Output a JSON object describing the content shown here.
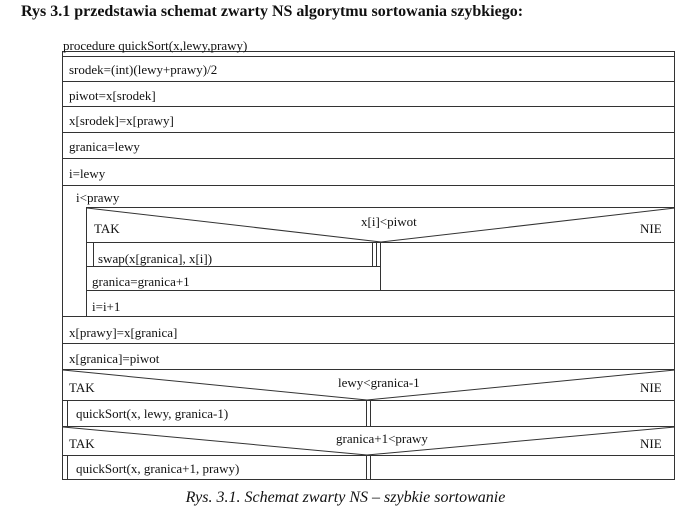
{
  "heading": "Rys 3.1 przedstawia schemat zwarty NS algorytmu sortowania szybkiego:",
  "caption": "Rys. 3.1. Schemat zwarty NS – szybkie sortowanie",
  "diagram": {
    "procedure": "procedure quickSort(x,lewy,prawy)",
    "srodek": "srodek=(int)(lewy+prawy)/2",
    "piwot": "piwot=x[srodek]",
    "assign_srodek": "x[srodek]=x[prawy]",
    "granica_init": "granica=lewy",
    "i_init": "i=lewy",
    "loop": {
      "condition": "i<prawy",
      "decision": {
        "condition": "x[i]<piwot",
        "yes": "TAK",
        "no": "NIE",
        "swap": "swap(x[granica], x[i])",
        "granica_inc": "granica=granica+1"
      },
      "i_inc": "i=i+1"
    },
    "assign_prawy": "x[prawy]=x[granica]",
    "assign_granica": "x[granica]=piwot",
    "if1": {
      "yes": "TAK",
      "condition": "lewy<granica-1",
      "no": "NIE",
      "call": "quickSort(x, lewy, granica-1)"
    },
    "if2": {
      "yes": "TAK",
      "condition": "granica+1<prawy",
      "no": "NIE",
      "call": "quickSort(x, granica+1, prawy)"
    }
  }
}
